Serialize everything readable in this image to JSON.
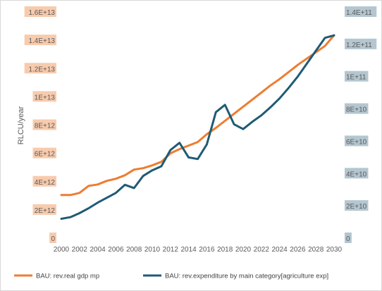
{
  "chart_data": {
    "type": "line",
    "title": "",
    "ylabel_left": "RLCU/year",
    "ylabel_right": "",
    "xlabel": "",
    "x": [
      2000,
      2001,
      2002,
      2003,
      2004,
      2005,
      2006,
      2007,
      2008,
      2009,
      2010,
      2011,
      2012,
      2013,
      2014,
      2015,
      2016,
      2017,
      2018,
      2019,
      2020,
      2021,
      2022,
      2023,
      2024,
      2025,
      2026,
      2027,
      2028,
      2029,
      2030
    ],
    "x_tick_labels": [
      "2000",
      "2002",
      "2004",
      "2006",
      "2008",
      "2010",
      "2012",
      "2014",
      "2016",
      "2018",
      "2020",
      "2022",
      "2024",
      "2026",
      "2028",
      "2030"
    ],
    "y_left_lim": [
      0,
      16000000000000.0
    ],
    "y_left_tick_labels": [
      "0",
      "2E+12",
      "4E+12",
      "6E+12",
      "8E+12",
      "1E+13",
      "1.2E+13",
      "1.4E+13",
      "1.6E+13"
    ],
    "y_right_lim": [
      0,
      140000000000.0
    ],
    "y_right_tick_labels": [
      "0",
      "2E+10",
      "4E+10",
      "6E+10",
      "8E+10",
      "1E+11",
      "1.2E+11",
      "1.4E+11"
    ],
    "grid": false,
    "legend_position": "bottom",
    "series": [
      {
        "name": "BAU: rev.real gdp mp",
        "axis": "left",
        "color": "#ed7d31",
        "values": [
          3050000000000.0,
          3050000000000.0,
          3200000000000.0,
          3700000000000.0,
          3800000000000.0,
          4050000000000.0,
          4200000000000.0,
          4450000000000.0,
          4850000000000.0,
          4950000000000.0,
          5150000000000.0,
          5400000000000.0,
          6000000000000.0,
          6300000000000.0,
          6550000000000.0,
          6800000000000.0,
          7350000000000.0,
          7800000000000.0,
          8300000000000.0,
          8800000000000.0,
          9300000000000.0,
          9800000000000.0,
          10300000000000.0,
          10800000000000.0,
          11250000000000.0,
          11750000000000.0,
          12250000000000.0,
          12700000000000.0,
          13150000000000.0,
          13600000000000.0,
          14350000000000.0
        ]
      },
      {
        "name": "BAU: rev.expenditure by main category[agriculture exp]",
        "axis": "right",
        "color": "#1f5b74",
        "values": [
          12000000000.0,
          13000000000.0,
          15500000000.0,
          18500000000.0,
          22000000000.0,
          25000000000.0,
          28000000000.0,
          33000000000.0,
          31000000000.0,
          38500000000.0,
          42000000000.0,
          44500000000.0,
          54500000000.0,
          59000000000.0,
          50000000000.0,
          49000000000.0,
          58000000000.0,
          78000000000.0,
          82500000000.0,
          70500000000.0,
          67500000000.0,
          72000000000.0,
          76000000000.0,
          81000000000.0,
          86500000000.0,
          93000000000.0,
          100000000000.0,
          108000000000.0,
          116000000000.0,
          124000000000.0,
          125500000000.0
        ]
      }
    ]
  }
}
